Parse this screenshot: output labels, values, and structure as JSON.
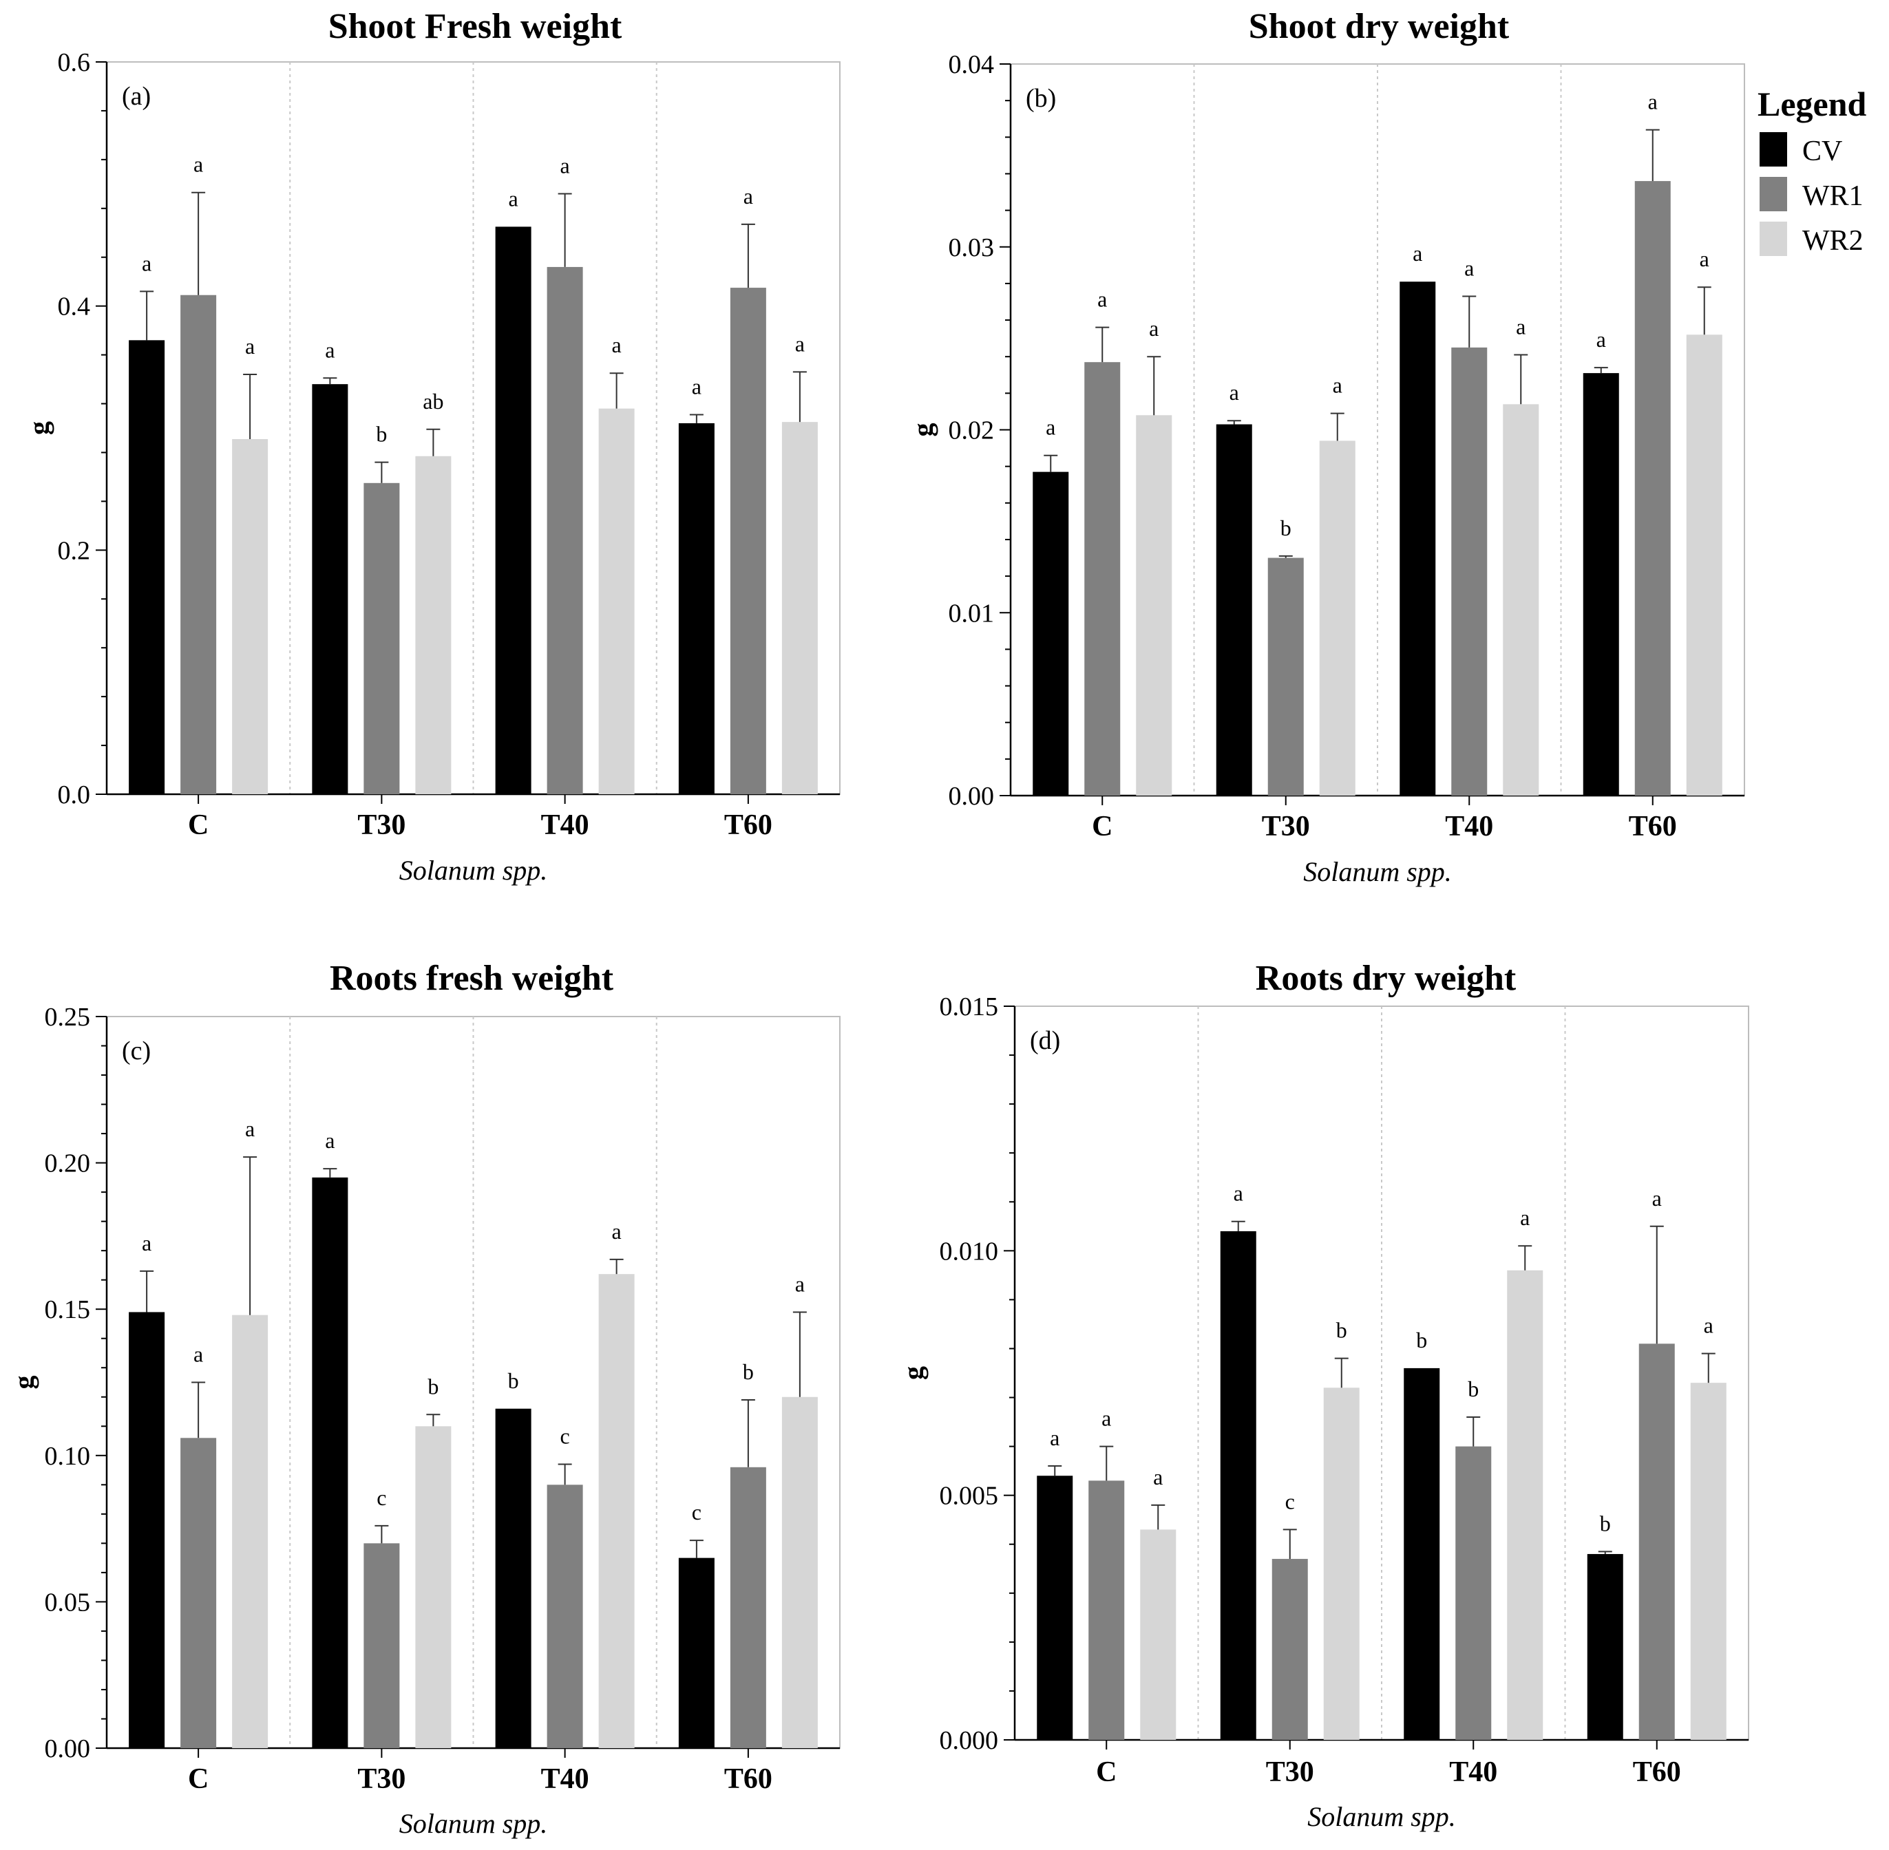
{
  "legend": {
    "title": "Legend",
    "items": [
      {
        "name": "CV",
        "color": "#000000"
      },
      {
        "name": "WR1",
        "color": "#808080"
      },
      {
        "name": "WR2",
        "color": "#d6d6d6"
      }
    ]
  },
  "chart_data": [
    {
      "type": "bar",
      "title": "Shoot Fresh weight",
      "panel_label": "(a)",
      "xlabel": "Solanum spp.",
      "ylabel": "g",
      "categories": [
        "C",
        "T30",
        "T40",
        "T60"
      ],
      "ylim": [
        0,
        0.6
      ],
      "yticks": [
        "0.0",
        "0.2",
        "0.4",
        "0.6"
      ],
      "series": [
        {
          "name": "CV",
          "values": [
            0.372,
            0.336,
            0.465,
            0.304
          ],
          "errors": [
            0.04,
            0.005,
            0.0,
            0.007
          ],
          "letters": [
            "a",
            "a",
            "a",
            "a"
          ]
        },
        {
          "name": "WR1",
          "values": [
            0.409,
            0.255,
            0.432,
            0.415
          ],
          "errors": [
            0.084,
            0.017,
            0.06,
            0.052
          ],
          "letters": [
            "a",
            "b",
            "a",
            "a"
          ]
        },
        {
          "name": "WR2",
          "values": [
            0.291,
            0.277,
            0.316,
            0.305
          ],
          "errors": [
            0.053,
            0.022,
            0.029,
            0.041
          ],
          "letters": [
            "a",
            "ab",
            "a",
            "a"
          ]
        }
      ]
    },
    {
      "type": "bar",
      "title": "Shoot dry weight",
      "panel_label": "(b)",
      "xlabel": "Solanum spp.",
      "ylabel": "g",
      "categories": [
        "C",
        "T30",
        "T40",
        "T60"
      ],
      "ylim": [
        0,
        0.04
      ],
      "yticks": [
        "0.00",
        "0.01",
        "0.02",
        "0.03",
        "0.04"
      ],
      "series": [
        {
          "name": "CV",
          "values": [
            0.0177,
            0.0203,
            0.0281,
            0.0231
          ],
          "errors": [
            0.0009,
            0.0002,
            0.0,
            0.0003
          ],
          "letters": [
            "a",
            "a",
            "a",
            "a"
          ]
        },
        {
          "name": "WR1",
          "values": [
            0.0237,
            0.013,
            0.0245,
            0.0336
          ],
          "errors": [
            0.0019,
            0.0001,
            0.0028,
            0.0028
          ],
          "letters": [
            "a",
            "b",
            "a",
            "a"
          ]
        },
        {
          "name": "WR2",
          "values": [
            0.0208,
            0.0194,
            0.0214,
            0.0252
          ],
          "errors": [
            0.0032,
            0.0015,
            0.0027,
            0.0026
          ],
          "letters": [
            "a",
            "a",
            "a",
            "a"
          ]
        }
      ]
    },
    {
      "type": "bar",
      "title": "Roots fresh weight",
      "panel_label": "(c)",
      "xlabel": "Solanum spp.",
      "ylabel": "g",
      "categories": [
        "C",
        "T30",
        "T40",
        "T60"
      ],
      "ylim": [
        0,
        0.25
      ],
      "yticks": [
        "0.00",
        "0.05",
        "0.10",
        "0.15",
        "0.20",
        "0.25"
      ],
      "series": [
        {
          "name": "CV",
          "values": [
            0.149,
            0.195,
            0.116,
            0.065
          ],
          "errors": [
            0.014,
            0.003,
            0.0,
            0.006
          ],
          "letters": [
            "a",
            "a",
            "b",
            "c"
          ]
        },
        {
          "name": "WR1",
          "values": [
            0.106,
            0.07,
            0.09,
            0.096
          ],
          "errors": [
            0.019,
            0.006,
            0.007,
            0.023
          ],
          "letters": [
            "a",
            "c",
            "c",
            "b"
          ]
        },
        {
          "name": "WR2",
          "values": [
            0.148,
            0.11,
            0.162,
            0.12
          ],
          "errors": [
            0.054,
            0.004,
            0.005,
            0.029
          ],
          "letters": [
            "a",
            "b",
            "a",
            "a"
          ]
        }
      ]
    },
    {
      "type": "bar",
      "title": "Roots dry weight",
      "panel_label": "(d)",
      "xlabel": "Solanum spp.",
      "ylabel": "g",
      "categories": [
        "C",
        "T30",
        "T40",
        "T60"
      ],
      "ylim": [
        0,
        0.015
      ],
      "yticks": [
        "0.000",
        "0.005",
        "0.010",
        "0.015"
      ],
      "series": [
        {
          "name": "CV",
          "values": [
            0.0054,
            0.0104,
            0.0076,
            0.0038
          ],
          "errors": [
            0.0002,
            0.0002,
            0.0,
            5e-05
          ],
          "letters": [
            "a",
            "a",
            "b",
            "b"
          ]
        },
        {
          "name": "WR1",
          "values": [
            0.0053,
            0.0037,
            0.006,
            0.0081
          ],
          "errors": [
            0.0007,
            0.0006,
            0.0006,
            0.0024
          ],
          "letters": [
            "a",
            "c",
            "b",
            "a"
          ]
        },
        {
          "name": "WR2",
          "values": [
            0.0043,
            0.0072,
            0.0096,
            0.0073
          ],
          "errors": [
            0.0005,
            0.0006,
            0.0005,
            0.0006
          ],
          "letters": [
            "a",
            "b",
            "a",
            "a"
          ]
        }
      ]
    }
  ]
}
